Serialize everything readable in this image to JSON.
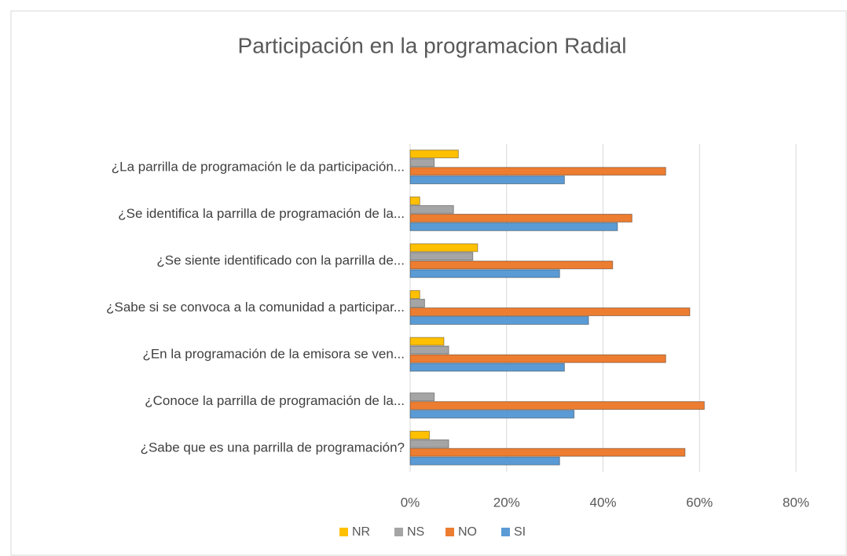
{
  "chart_data": {
    "type": "hbar",
    "title": "Participación en la programacion Radial",
    "categories": [
      "¿La parrilla de programación le da participación...",
      "¿Se identifica la parrilla de programación de la...",
      "¿Se siente identificado con la parrilla de...",
      "¿Sabe si se convoca a la comunidad a participar...",
      "¿En la programación de la emisora  se ven...",
      "¿Conoce la parrilla de programación de la...",
      "¿Sabe que es una parrilla de programación?"
    ],
    "series": [
      {
        "name": "NR",
        "color": "#ffc000",
        "values": [
          10,
          2,
          14,
          2,
          7,
          0,
          4
        ]
      },
      {
        "name": "NS",
        "color": "#a5a5a5",
        "values": [
          5,
          9,
          13,
          3,
          8,
          5,
          8
        ]
      },
      {
        "name": "NO",
        "color": "#ed7d31",
        "values": [
          53,
          46,
          42,
          58,
          53,
          61,
          57
        ]
      },
      {
        "name": "SI",
        "color": "#5b9bd5",
        "values": [
          32,
          43,
          31,
          37,
          32,
          34,
          31
        ]
      }
    ],
    "xlim": [
      0,
      80
    ],
    "xticks": [
      {
        "value": 0,
        "label": "0%"
      },
      {
        "value": 20,
        "label": "20%"
      },
      {
        "value": 40,
        "label": "40%"
      },
      {
        "value": 60,
        "label": "60%"
      },
      {
        "value": 80,
        "label": "80%"
      }
    ],
    "grid": true,
    "legend": "bottom"
  }
}
